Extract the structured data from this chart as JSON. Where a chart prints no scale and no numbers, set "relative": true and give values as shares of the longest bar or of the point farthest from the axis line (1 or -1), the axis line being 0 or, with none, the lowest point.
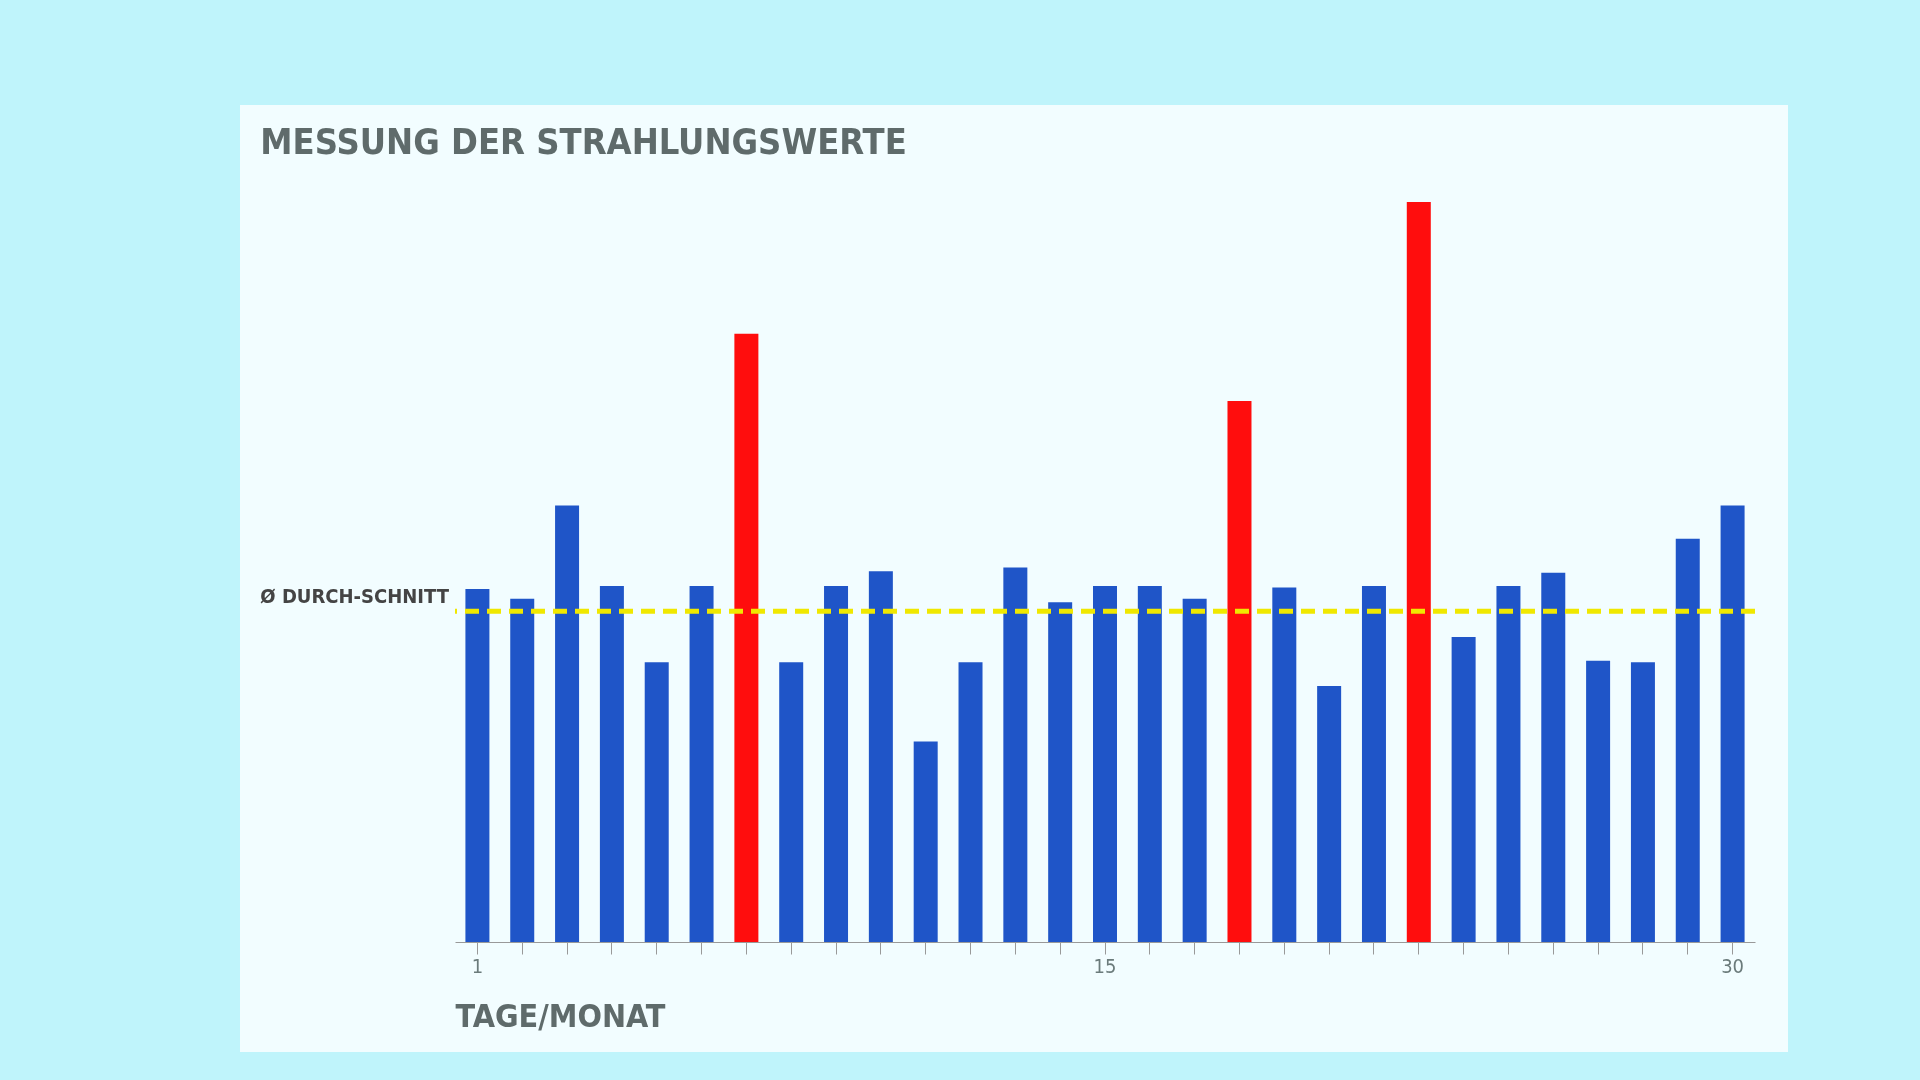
{
  "chart_data": {
    "type": "bar",
    "title": "MESSUNG DER STRAHLUNGSWERTE",
    "xlabel": "TAGE/MONAT",
    "relative": true,
    "categories": [
      "1",
      null,
      null,
      null,
      null,
      null,
      null,
      null,
      null,
      null,
      null,
      null,
      null,
      null,
      "15",
      null,
      null,
      null,
      null,
      null,
      null,
      null,
      null,
      null,
      null,
      null,
      null,
      null,
      "30"
    ],
    "values": [
      0.477,
      0.464,
      0.59,
      0.481,
      0.378,
      0.481,
      0.822,
      0.378,
      0.481,
      0.501,
      0.271,
      0.378,
      0.506,
      0.459,
      0.481,
      0.481,
      0.464,
      0.731,
      0.479,
      0.346,
      0.481,
      1,
      0.412,
      0.481,
      0.499,
      0.38,
      0.378,
      0.545,
      0.59
    ],
    "colors": [
      "#1f55c8",
      "#1f55c8",
      "#1f55c8",
      "#1f55c8",
      "#1f55c8",
      "#1f55c8",
      "#ff0d0d",
      "#1f55c8",
      "#1f55c8",
      "#1f55c8",
      "#1f55c8",
      "#1f55c8",
      "#1f55c8",
      "#1f55c8",
      "#1f55c8",
      "#1f55c8",
      "#1f55c8",
      "#ff0d0d",
      "#1f55c8",
      "#1f55c8",
      "#1f55c8",
      "#ff0d0d",
      "#1f55c8",
      "#1f55c8",
      "#1f55c8",
      "#1f55c8",
      "#1f55c8",
      "#1f55c8",
      "#1f55c8"
    ],
    "ref_lines": [
      {
        "axis": "y",
        "value": 0.447,
        "label": "Ø DURCH-SCHNITT",
        "color": "#f0e800",
        "line_style": "dashed"
      }
    ],
    "grid": false
  }
}
